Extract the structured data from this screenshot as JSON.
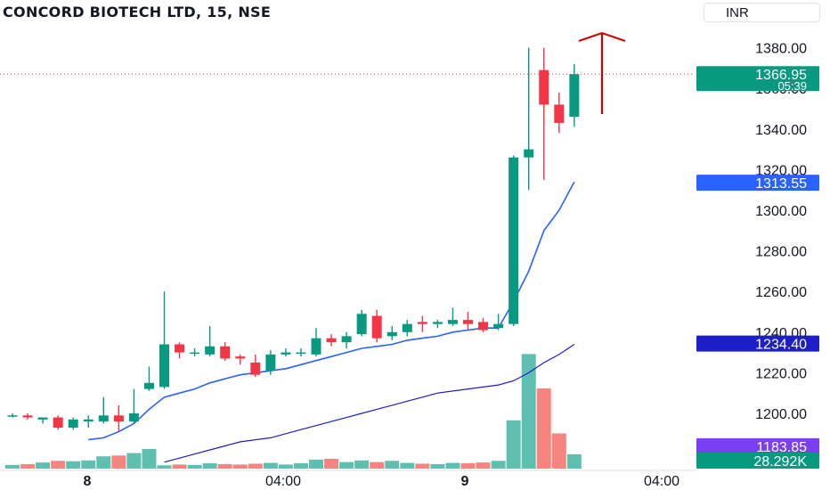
{
  "header": {
    "title": "CONCORD BIOTECH LTD, 15, NSE",
    "currency": "INR"
  },
  "colors": {
    "up": "#089981",
    "down": "#f23645",
    "ma_fast": "#2962ff",
    "ma_slow": "#1e1ec8",
    "vol_up": "#5fbfb1",
    "vol_down": "#f7857f",
    "arrow": "#cc0000"
  },
  "chart_data": {
    "type": "candlestick",
    "ylim": [
      1180,
      1390
    ],
    "y_ticks": [
      "1200.00",
      "1220.00",
      "1240.00",
      "1260.00",
      "1280.00",
      "1300.00",
      "1320.00",
      "1340.00",
      "1380.00"
    ],
    "x_ticks": [
      "8",
      "04:00",
      "9",
      "04:00"
    ],
    "candles": [
      {
        "o": 1199,
        "h": 1200,
        "l": 1198,
        "c": 1199
      },
      {
        "o": 1199,
        "h": 1200,
        "l": 1197,
        "c": 1198
      },
      {
        "o": 1197,
        "h": 1198,
        "l": 1195,
        "c": 1198
      },
      {
        "o": 1198,
        "h": 1199,
        "l": 1192,
        "c": 1193
      },
      {
        "o": 1193,
        "h": 1198,
        "l": 1192,
        "c": 1197
      },
      {
        "o": 1196,
        "h": 1199,
        "l": 1193,
        "c": 1197
      },
      {
        "o": 1196,
        "h": 1208,
        "l": 1195,
        "c": 1199
      },
      {
        "o": 1199,
        "h": 1204,
        "l": 1191,
        "c": 1196
      },
      {
        "o": 1196,
        "h": 1212,
        "l": 1195,
        "c": 1200
      },
      {
        "o": 1212,
        "h": 1223,
        "l": 1211,
        "c": 1215
      },
      {
        "o": 1213,
        "h": 1260,
        "l": 1212,
        "c": 1234
      },
      {
        "o": 1234,
        "h": 1235,
        "l": 1227,
        "c": 1230
      },
      {
        "o": 1230,
        "h": 1232,
        "l": 1228,
        "c": 1230
      },
      {
        "o": 1229,
        "h": 1243,
        "l": 1228,
        "c": 1233
      },
      {
        "o": 1233,
        "h": 1235,
        "l": 1226,
        "c": 1227
      },
      {
        "o": 1228,
        "h": 1229,
        "l": 1224,
        "c": 1227
      },
      {
        "o": 1225,
        "h": 1229,
        "l": 1218,
        "c": 1219
      },
      {
        "o": 1221,
        "h": 1231,
        "l": 1219,
        "c": 1229
      },
      {
        "o": 1229,
        "h": 1232,
        "l": 1228,
        "c": 1230
      },
      {
        "o": 1230,
        "h": 1232,
        "l": 1228,
        "c": 1230
      },
      {
        "o": 1229,
        "h": 1242,
        "l": 1228,
        "c": 1237
      },
      {
        "o": 1237,
        "h": 1239,
        "l": 1233,
        "c": 1235
      },
      {
        "o": 1235,
        "h": 1240,
        "l": 1232,
        "c": 1238
      },
      {
        "o": 1239,
        "h": 1251,
        "l": 1238,
        "c": 1249
      },
      {
        "o": 1248,
        "h": 1251,
        "l": 1235,
        "c": 1237
      },
      {
        "o": 1238,
        "h": 1243,
        "l": 1236,
        "c": 1240
      },
      {
        "o": 1240,
        "h": 1246,
        "l": 1238,
        "c": 1244
      },
      {
        "o": 1245,
        "h": 1248,
        "l": 1240,
        "c": 1244
      },
      {
        "o": 1244,
        "h": 1246,
        "l": 1242,
        "c": 1245
      },
      {
        "o": 1244,
        "h": 1252,
        "l": 1243,
        "c": 1246
      },
      {
        "o": 1246,
        "h": 1250,
        "l": 1241,
        "c": 1244
      },
      {
        "o": 1245,
        "h": 1247,
        "l": 1240,
        "c": 1241
      },
      {
        "o": 1242,
        "h": 1249,
        "l": 1241,
        "c": 1244
      },
      {
        "o": 1244,
        "h": 1327,
        "l": 1243,
        "c": 1326
      },
      {
        "o": 1326,
        "h": 1380,
        "l": 1310,
        "c": 1330
      },
      {
        "o": 1369,
        "h": 1380,
        "l": 1315,
        "c": 1352
      },
      {
        "o": 1352,
        "h": 1358,
        "l": 1338,
        "c": 1343
      },
      {
        "o": 1346,
        "h": 1372,
        "l": 1341,
        "c": 1367
      }
    ],
    "volume_max": 28.292,
    "volume": [
      0.9,
      1.1,
      1.5,
      1.9,
      1.8,
      2.0,
      3.0,
      3.2,
      3.8,
      4.8,
      0.8,
      1.0,
      0.9,
      1.3,
      1.1,
      1.0,
      1.2,
      1.4,
      1.0,
      1.3,
      2.2,
      2.4,
      1.6,
      2.0,
      1.6,
      1.9,
      1.4,
      1.2,
      1.1,
      1.4,
      1.3,
      1.5,
      1.9,
      11.8,
      28.0,
      19.6,
      8.6,
      3.5
    ],
    "ma_fast": [
      null,
      null,
      null,
      null,
      null,
      1187,
      1188,
      1191,
      1195,
      1202,
      1208,
      1210,
      1212,
      1215,
      1217,
      1219,
      1220,
      1221,
      1222,
      1224,
      1226,
      1228,
      1230,
      1232,
      1233,
      1234,
      1236,
      1237,
      1238,
      1240,
      1241,
      1242,
      1242,
      1255,
      1270,
      1290,
      1300,
      1314
    ],
    "ma_slow": [
      null,
      null,
      null,
      null,
      null,
      null,
      null,
      null,
      null,
      null,
      1176,
      1178,
      1180,
      1182,
      1184,
      1186,
      1187,
      1188,
      1190,
      1192,
      1194,
      1196,
      1198,
      1200,
      1202,
      1204,
      1206,
      1208,
      1210,
      1211,
      1212,
      1213,
      1214,
      1216,
      1220,
      1225,
      1229,
      1234
    ],
    "last": {
      "price": "1366.95",
      "countdown": "05:39",
      "value": 1367,
      "partial_label": "1360.00"
    },
    "labels": [
      {
        "text": "1313.55",
        "value": 1313.55,
        "color": "#2962ff"
      },
      {
        "text": "1234.40",
        "value": 1234.4,
        "color": "#1e1ec8"
      },
      {
        "text": "1183.85",
        "value": 1183.85,
        "color": "#7b3ff2"
      }
    ],
    "volume_label": "28.292K"
  }
}
